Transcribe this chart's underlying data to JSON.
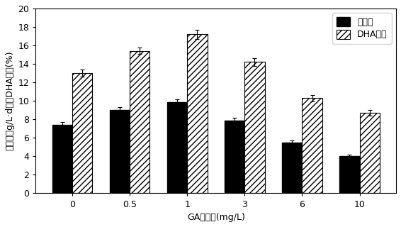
{
  "categories": [
    "0",
    "0.5",
    "1",
    "3",
    "6",
    "10"
  ],
  "biomass_values": [
    7.4,
    9.0,
    9.9,
    7.9,
    5.5,
    4.0
  ],
  "dha_values": [
    13.0,
    15.4,
    17.2,
    14.2,
    10.3,
    8.7
  ],
  "biomass_errors": [
    0.3,
    0.3,
    0.3,
    0.3,
    0.2,
    0.2
  ],
  "dha_errors": [
    0.4,
    0.35,
    0.5,
    0.4,
    0.35,
    0.3
  ],
  "biomass_color": "#000000",
  "dha_hatch": "////",
  "dha_facecolor": "#ffffff",
  "dha_edgecolor": "#000000",
  "xlabel": "GA添加量(mg/L)",
  "ylabel": "生物量（g/L·d）和DHA含量(%)",
  "ylim": [
    0,
    20
  ],
  "yticks": [
    0,
    2,
    4,
    6,
    8,
    10,
    12,
    14,
    16,
    18,
    20
  ],
  "legend_biomass": "生物量",
  "legend_dha": "DHA含量",
  "bar_width": 0.35,
  "figsize": [
    5.66,
    3.2
  ],
  "dpi": 100,
  "font_size": 9,
  "legend_font_size": 9
}
